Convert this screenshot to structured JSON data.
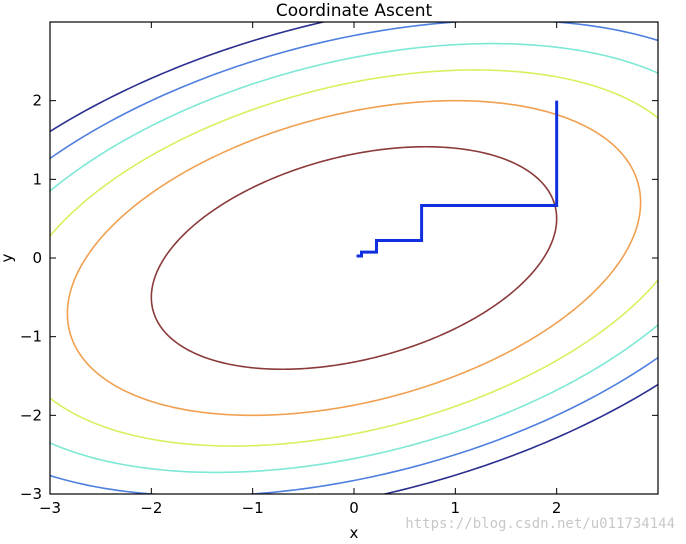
{
  "chart_data": {
    "type": "line",
    "title": "Coordinate Ascent",
    "xlabel": "x",
    "ylabel": "y",
    "xlim": [
      -3,
      3
    ],
    "ylim": [
      -3,
      3
    ],
    "xticks": [
      -3,
      -2,
      -1,
      0,
      1,
      2
    ],
    "yticks": [
      -3,
      -2,
      -1,
      0,
      1,
      2
    ],
    "xtick_labels": [
      "−3",
      "−2",
      "−1",
      "0",
      "1",
      "2"
    ],
    "ytick_labels": [
      "−3",
      "−2",
      "−1",
      "0",
      "1",
      "2"
    ],
    "grid": false,
    "legend": false,
    "contour_function": "-(x^2 - x*y + 2*y^2)",
    "contour_levels": [
      {
        "level": -3.5,
        "color": "#8b3a3a"
      },
      {
        "level": -7,
        "color": "#f0a050"
      },
      {
        "level": -10,
        "color": "#d8f060"
      },
      {
        "level": -13,
        "color": "#7ee8d6"
      },
      {
        "level": -16,
        "color": "#4f7fdf"
      },
      {
        "level": -19,
        "color": "#2b2f8f"
      }
    ],
    "series": [
      {
        "color": "#1030e0",
        "x": [
          2.0,
          2.0,
          0.667,
          0.667,
          0.222,
          0.222,
          0.074,
          0.074,
          0.025
        ],
        "y": [
          2.0,
          0.667,
          0.667,
          0.222,
          0.222,
          0.074,
          0.074,
          0.025,
          0.025
        ]
      }
    ]
  },
  "watermark": "https://blog.csdn.net/u011734144"
}
